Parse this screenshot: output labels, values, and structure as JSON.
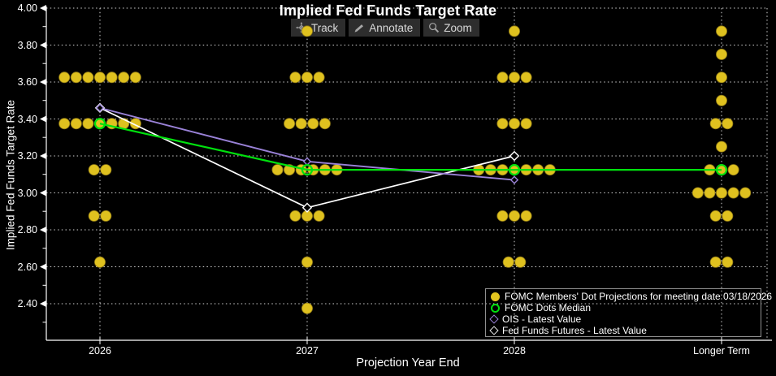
{
  "toolbar": {
    "buttons": [
      {
        "icon": "track-crosshair-icon",
        "label": "Track"
      },
      {
        "icon": "annotate-pencil-icon",
        "label": "Annotate"
      },
      {
        "icon": "zoom-magnifier-icon",
        "label": "Zoom"
      }
    ]
  },
  "chart_data": {
    "type": "scatter",
    "title": "Implied Fed Funds Target Rate",
    "xlabel": "Projection Year End",
    "ylabel": "Implied Fed Funds Target Rate",
    "categories": [
      "2026",
      "2027",
      "2028",
      "Longer Term"
    ],
    "ylim": [
      2.2,
      4.0
    ],
    "yticks": [
      "4.00",
      "3.80",
      "3.60",
      "3.40",
      "3.20",
      "3.00",
      "2.80",
      "2.60",
      "2.40"
    ],
    "grid": true,
    "legend_position": "bottom-right",
    "dot_color": "#dfc11f",
    "dots": [
      {
        "category": "2026",
        "rows": [
          {
            "rate": 3.625,
            "count": 7
          },
          {
            "rate": 3.375,
            "count": 7
          },
          {
            "rate": 3.125,
            "count": 2
          },
          {
            "rate": 2.875,
            "count": 2
          },
          {
            "rate": 2.625,
            "count": 1
          }
        ]
      },
      {
        "category": "2027",
        "rows": [
          {
            "rate": 3.875,
            "count": 1
          },
          {
            "rate": 3.625,
            "count": 3
          },
          {
            "rate": 3.375,
            "count": 4
          },
          {
            "rate": 3.125,
            "count": 6
          },
          {
            "rate": 2.875,
            "count": 3
          },
          {
            "rate": 2.625,
            "count": 1
          },
          {
            "rate": 2.375,
            "count": 1
          }
        ]
      },
      {
        "category": "2028",
        "rows": [
          {
            "rate": 3.875,
            "count": 1
          },
          {
            "rate": 3.625,
            "count": 3
          },
          {
            "rate": 3.375,
            "count": 3
          },
          {
            "rate": 3.125,
            "count": 7
          },
          {
            "rate": 2.875,
            "count": 3
          },
          {
            "rate": 2.625,
            "count": 2
          }
        ]
      },
      {
        "category": "Longer Term",
        "rows": [
          {
            "rate": 3.875,
            "count": 1
          },
          {
            "rate": 3.75,
            "count": 1
          },
          {
            "rate": 3.625,
            "count": 1
          },
          {
            "rate": 3.5,
            "count": 1
          },
          {
            "rate": 3.375,
            "count": 2
          },
          {
            "rate": 3.25,
            "count": 1
          },
          {
            "rate": 3.125,
            "count": 3
          },
          {
            "rate": 3.0,
            "count": 5
          },
          {
            "rate": 2.875,
            "count": 2
          },
          {
            "rate": 2.625,
            "count": 2
          }
        ]
      }
    ],
    "series": [
      {
        "name": "FOMC Dots Median",
        "marker": "open-circle",
        "color": "#00e10e",
        "x": [
          "2026",
          "2027",
          "2028",
          "Longer Term"
        ],
        "values": [
          3.375,
          3.125,
          3.125,
          3.125
        ]
      },
      {
        "name": "OIS - Latest Value",
        "marker": "open-diamond",
        "color": "#9a82d8",
        "x": [
          "2026",
          "2027",
          "2028"
        ],
        "values": [
          3.46,
          3.17,
          3.07
        ]
      },
      {
        "name": "Fed Funds Futures - Latest Value",
        "marker": "open-diamond",
        "color": "#ffffff",
        "x": [
          "2026",
          "2027",
          "2028"
        ],
        "values": [
          3.46,
          2.92,
          3.2
        ]
      }
    ]
  },
  "legend": {
    "items": [
      {
        "marker": "dot",
        "color": "#e3c41f",
        "label": "FOMC Members' Dot Projections for meeting date 03/18/2026"
      },
      {
        "marker": "open-circle",
        "color": "#00e10e",
        "label": "FOMC Dots Median"
      },
      {
        "marker": "open-diamond",
        "color": "#9a82d8",
        "label": "OIS - Latest Value"
      },
      {
        "marker": "open-diamond",
        "color": "#e8e8e8",
        "label": "Fed Funds Futures - Latest Value"
      }
    ]
  }
}
